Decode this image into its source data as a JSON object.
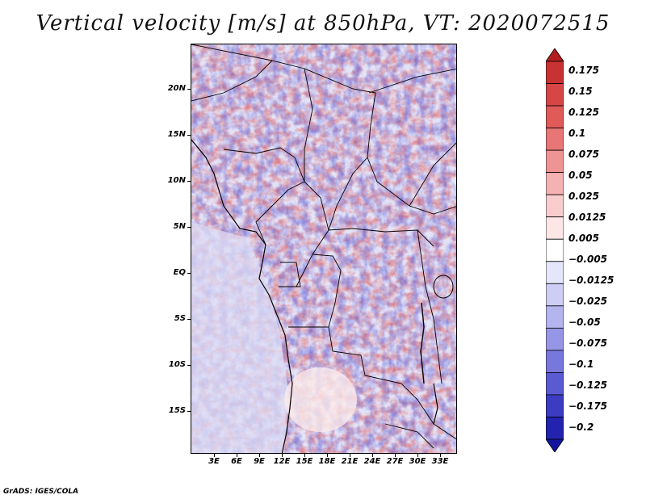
{
  "title": "Vertical velocity [m/s] at 850hPa, VT: 2020072515",
  "footer": "GrADS: IGES/COLA",
  "map": {
    "region": "Central Africa",
    "lat_labels": [
      "20N",
      "15N",
      "10N",
      "5N",
      "EQ",
      "5S",
      "10S",
      "15S"
    ],
    "lon_labels": [
      "3E",
      "6E",
      "9E",
      "12E",
      "15E",
      "18E",
      "21E",
      "24E",
      "27E",
      "30E",
      "33E"
    ]
  },
  "colorbar": {
    "labels": [
      "0.175",
      "0.15",
      "0.125",
      "0.1",
      "0.075",
      "0.05",
      "0.025",
      "0.0125",
      "0.005",
      "−0.005",
      "−0.0125",
      "−0.025",
      "−0.05",
      "−0.075",
      "−0.1",
      "−0.125",
      "−0.175",
      "−0.2"
    ],
    "colors": [
      "#b41e1e",
      "#c83232",
      "#d74646",
      "#e05a5a",
      "#e87676",
      "#ef9494",
      "#f5b2b2",
      "#f9cdcd",
      "#fce6e6",
      "#ffffff",
      "#e6e6fa",
      "#cdcdf5",
      "#b4b4ee",
      "#9696e6",
      "#7878dc",
      "#5a5ad2",
      "#3c3cc3",
      "#2323b0",
      "#1414a0"
    ]
  }
}
